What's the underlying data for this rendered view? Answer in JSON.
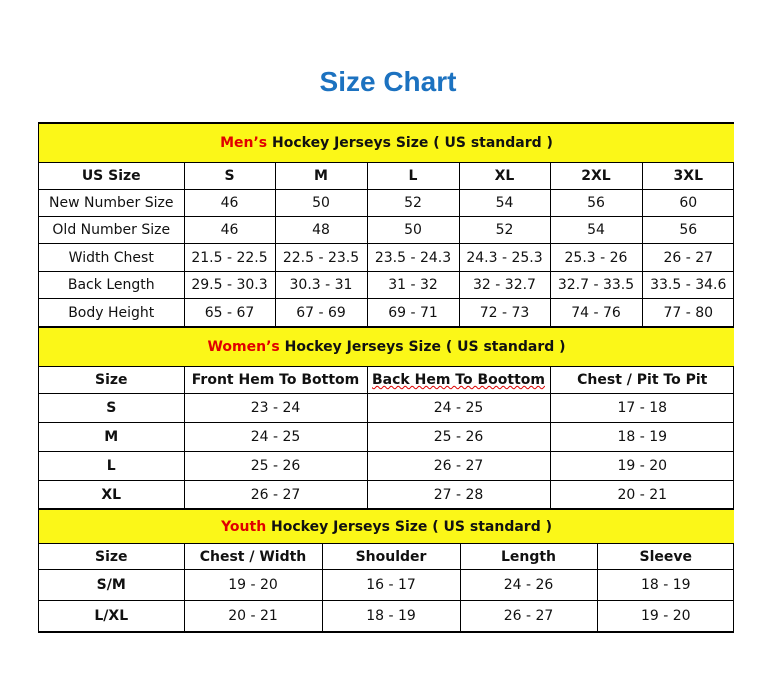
{
  "title": "Size Chart",
  "colors": {
    "title": "#1c72c0",
    "band": "#fbf718",
    "accent": "#e00000"
  },
  "men": {
    "accent": "Men’s",
    "heading": " Hockey Jerseys Size ( US standard )",
    "columns": [
      "US Size",
      "S",
      "M",
      "L",
      "XL",
      "2XL",
      "3XL"
    ],
    "rows": [
      [
        "New Number Size",
        "46",
        "50",
        "52",
        "54",
        "56",
        "60"
      ],
      [
        "Old Number Size",
        "46",
        "48",
        "50",
        "52",
        "54",
        "56"
      ],
      [
        "Width Chest",
        "21.5 - 22.5",
        "22.5 - 23.5",
        "23.5 - 24.3",
        "24.3 - 25.3",
        "25.3 - 26",
        "26 - 27"
      ],
      [
        "Back Length",
        "29.5 - 30.3",
        "30.3 - 31",
        "31 - 32",
        "32 - 32.7",
        "32.7 - 33.5",
        "33.5 - 34.6"
      ],
      [
        "Body Height",
        "65 - 67",
        "67 - 69",
        "69 - 71",
        "72 - 73",
        "74 - 76",
        "77 - 80"
      ]
    ]
  },
  "women": {
    "accent": "Women’s",
    "heading": " Hockey Jerseys Size ( US standard )",
    "columns": [
      "Size",
      "Front Hem To Bottom",
      "Back Hem To Boottom",
      "Chest / Pit To Pit"
    ],
    "rows": [
      [
        "S",
        "23 - 24",
        "24 - 25",
        "17 - 18"
      ],
      [
        "M",
        "24 - 25",
        "25 - 26",
        "18 - 19"
      ],
      [
        "L",
        "25 - 26",
        "26 - 27",
        "19 - 20"
      ],
      [
        "XL",
        "26 - 27",
        "27 - 28",
        "20 - 21"
      ]
    ]
  },
  "youth": {
    "accent": "Youth",
    "heading": " Hockey Jerseys Size ( US standard )",
    "columns": [
      "Size",
      "Chest / Width",
      "Shoulder",
      "Length",
      "Sleeve"
    ],
    "rows": [
      [
        "S/M",
        "19 - 20",
        "16 - 17",
        "24 - 26",
        "18 - 19"
      ],
      [
        "L/XL",
        "20 - 21",
        "18 - 19",
        "26 - 27",
        "19 - 20"
      ]
    ]
  }
}
